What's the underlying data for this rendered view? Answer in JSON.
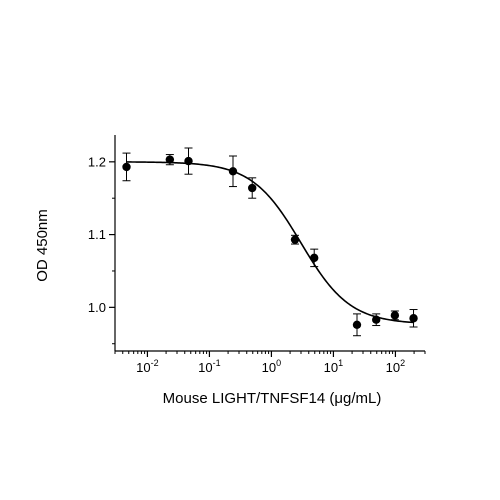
{
  "chart_data": {
    "type": "scatter",
    "title": "",
    "xlabel": "Mouse LIGHT/TNFSF14 (μg/mL)",
    "ylabel": "OD 450nm",
    "x_scale": "log",
    "xlim": [
      0.003,
      300
    ],
    "ylim": [
      0.94,
      1.23
    ],
    "x_ticks": [
      {
        "value": 0.01,
        "base": "10",
        "exp": "-2"
      },
      {
        "value": 0.1,
        "base": "10",
        "exp": "-1"
      },
      {
        "value": 1,
        "base": "10",
        "exp": "0"
      },
      {
        "value": 10,
        "base": "10",
        "exp": "1"
      },
      {
        "value": 100,
        "base": "10",
        "exp": "2"
      }
    ],
    "y_ticks": [
      {
        "value": 1.0,
        "label": "1.0"
      },
      {
        "value": 1.1,
        "label": "1.1"
      },
      {
        "value": 1.2,
        "label": "1.2"
      }
    ],
    "points": [
      {
        "x": 0.0046,
        "y": 1.193,
        "err": 0.019
      },
      {
        "x": 0.023,
        "y": 1.203,
        "err": 0.007
      },
      {
        "x": 0.046,
        "y": 1.201,
        "err": 0.018
      },
      {
        "x": 0.24,
        "y": 1.187,
        "err": 0.021
      },
      {
        "x": 0.49,
        "y": 1.164,
        "err": 0.014
      },
      {
        "x": 2.4,
        "y": 1.093,
        "err": 0.006
      },
      {
        "x": 4.9,
        "y": 1.068,
        "err": 0.012
      },
      {
        "x": 24,
        "y": 0.976,
        "err": 0.015
      },
      {
        "x": 49,
        "y": 0.983,
        "err": 0.008
      },
      {
        "x": 98,
        "y": 0.989,
        "err": 0.006
      },
      {
        "x": 196,
        "y": 0.985,
        "err": 0.012
      }
    ],
    "fit": {
      "type": "4PL",
      "top": 1.2,
      "bottom": 0.977,
      "ec50": 3.0,
      "hill": 1.1
    },
    "grid": false,
    "marker_color": "#000000",
    "line_color": "#000000"
  }
}
